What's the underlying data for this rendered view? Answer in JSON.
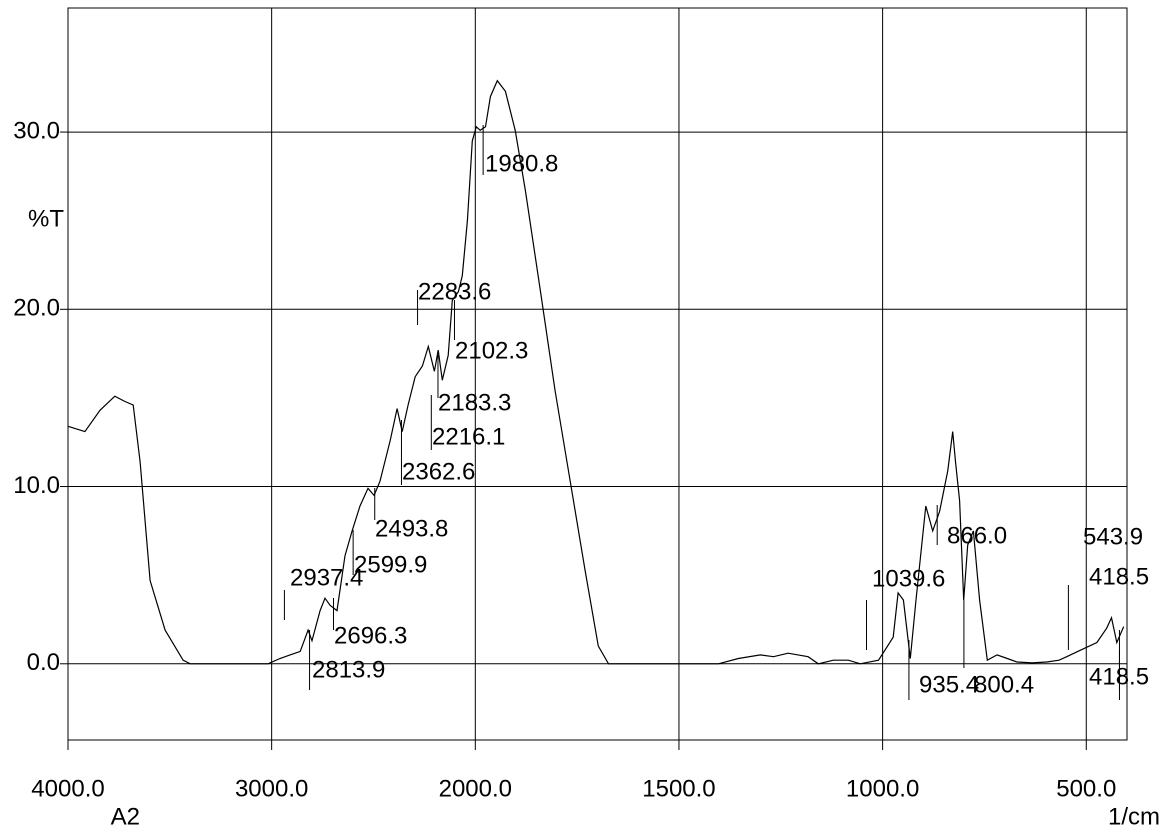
{
  "chart_data": {
    "type": "line",
    "x_label": "1/cm",
    "y_label": "%T",
    "sample": "A2",
    "xlim": [
      4000,
      400
    ],
    "ylim": [
      -4.3,
      37
    ],
    "xticks": [
      {
        "value": 4000,
        "label": "4000.0"
      },
      {
        "value": 3000,
        "label": "3000.0"
      },
      {
        "value": 2000,
        "label": "2000.0"
      },
      {
        "value": 1500,
        "label": "1500.0"
      },
      {
        "value": 1000,
        "label": "1000.0"
      },
      {
        "value": 500,
        "label": "500.0"
      }
    ],
    "yticks": [
      {
        "value": 0,
        "label": "0.0"
      },
      {
        "value": 10,
        "label": "10.0"
      },
      {
        "value": 20,
        "label": "20.0"
      },
      {
        "value": 30,
        "label": "30.0"
      }
    ],
    "grid": true,
    "series": [
      {
        "color": "#000000",
        "x": [
          4000,
          3917,
          3843,
          3770,
          3720,
          3680,
          3646,
          3597,
          3523,
          3435,
          3400,
          3018,
          2959,
          2910,
          2860,
          2821,
          2802,
          2762,
          2738,
          2713,
          2679,
          2640,
          2605,
          2566,
          2527,
          2497,
          2468,
          2418,
          2384,
          2359,
          2330,
          2295,
          2260,
          2231,
          2201,
          2182,
          2162,
          2133,
          2113,
          2083,
          2064,
          2039,
          2015,
          1997.5,
          1988,
          1975,
          1963,
          1946,
          1926,
          1902,
          1877,
          1840,
          1804,
          1767,
          1730,
          1698,
          1673,
          1403,
          1354,
          1300,
          1268,
          1232,
          1183,
          1158,
          1121,
          1084,
          1055,
          1010,
          974,
          962,
          949,
          932,
          918,
          894,
          877,
          860,
          840,
          828,
          821,
          811,
          801,
          791,
          777,
          762,
          743,
          719,
          694,
          670,
          633,
          597,
          567,
          548,
          511,
          474,
          450,
          438,
          425,
          408
        ],
        "values": [
          13.4,
          13.1,
          14.3,
          15.1,
          14.8,
          14.6,
          11.4,
          4.7,
          1.9,
          0.2,
          0,
          0,
          0.3,
          0.5,
          0.7,
          1.9,
          1.3,
          3.0,
          3.7,
          3.3,
          3.0,
          6.1,
          7.5,
          8.9,
          9.9,
          9.5,
          10.3,
          12.6,
          14.4,
          13.1,
          14.6,
          16.2,
          16.8,
          17.9,
          16.5,
          17.7,
          16.0,
          17.4,
          20.5,
          21.0,
          21.9,
          25.0,
          29.5,
          30.3,
          30.1,
          30.3,
          32.0,
          32.9,
          32.3,
          30.1,
          26.7,
          21.0,
          15.4,
          10.3,
          5.2,
          1.0,
          0,
          0,
          0.3,
          0.5,
          0.4,
          0.6,
          0.4,
          0,
          0.2,
          0.2,
          0,
          0.2,
          1.5,
          4.0,
          3.6,
          0.3,
          3.6,
          8.9,
          7.5,
          8.6,
          10.9,
          13.1,
          11.4,
          9.2,
          3.6,
          6.7,
          7.5,
          3.6,
          0.2,
          0.5,
          0.3,
          0.1,
          0.05,
          0.1,
          0.2,
          0.4,
          0.8,
          1.2,
          2.0,
          2.6,
          1.2,
          2.1
        ]
      }
    ],
    "peaks": [
      {
        "x": 1980.8,
        "label": "1980.8"
      },
      {
        "x": 2283.6,
        "label": "2283.6"
      },
      {
        "x": 2102.3,
        "label": "2102.3"
      },
      {
        "x": 2183.3,
        "label": "2183.3"
      },
      {
        "x": 2216.1,
        "label": "2216.1"
      },
      {
        "x": 2362.6,
        "label": "2362.6"
      },
      {
        "x": 2493.8,
        "label": "2493.8"
      },
      {
        "x": 2599.9,
        "label": "2599.9"
      },
      {
        "x": 2937.4,
        "label": "2937.4"
      },
      {
        "x": 2696.3,
        "label": "2696.3"
      },
      {
        "x": 2813.9,
        "label": "2813.9"
      },
      {
        "x": 866.0,
        "label": "866.0"
      },
      {
        "x": 1039.6,
        "label": "1039.6"
      },
      {
        "x": 800.4,
        "label": "800.4"
      },
      {
        "x": 935.4,
        "label": "935.4"
      },
      {
        "x": 543.9,
        "label": "543.9"
      },
      {
        "x": 418.5,
        "label": "418.5"
      },
      {
        "x": 418.5,
        "label": "418.5"
      }
    ]
  }
}
